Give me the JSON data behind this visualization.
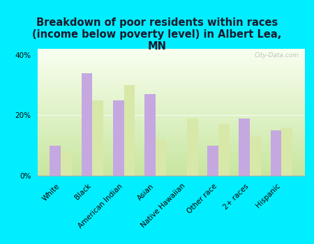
{
  "title": "Breakdown of poor residents within races\n(income below poverty level) in Albert Lea,\nMN",
  "categories": [
    "White",
    "Black",
    "American Indian",
    "Asian",
    "Native Hawaiian",
    "Other race",
    "2+ races",
    "Hispanic"
  ],
  "albert_lea": [
    10,
    34,
    25,
    27,
    0,
    10,
    19,
    15
  ],
  "minnesota": [
    8,
    25,
    30,
    12,
    19,
    17,
    13,
    16
  ],
  "albert_lea_color": "#c5a8e0",
  "minnesota_color": "#d8e8a8",
  "background_color": "#00eeff",
  "ylim": [
    0,
    42
  ],
  "yticks": [
    0,
    20,
    40
  ],
  "ytick_labels": [
    "0%",
    "20%",
    "40%"
  ],
  "bar_width": 0.35,
  "title_fontsize": 10.5,
  "tick_fontsize": 7.5,
  "legend_fontsize": 9,
  "watermark": "City-Data.com"
}
